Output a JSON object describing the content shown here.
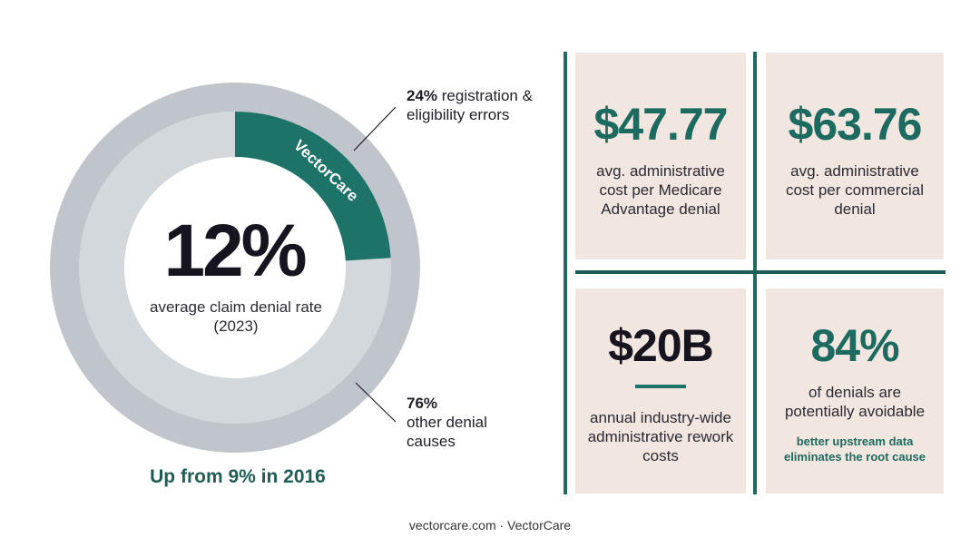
{
  "chart_data": {
    "type": "pie",
    "categories": [
      "registration & eligibility errors",
      "other denial causes"
    ],
    "values": [
      24,
      76
    ],
    "colors": [
      "#1d7368",
      "#d3d8dc"
    ],
    "center_value": "12%",
    "center_caption": "average claim denial rate (2023)",
    "segment_label": "VectorCare",
    "callouts": [
      {
        "pct": "24%",
        "text": "registration & eligibility errors"
      },
      {
        "pct": "76%",
        "text": "other denial causes"
      }
    ],
    "footnote": "Up from 9% in 2016"
  },
  "stats": [
    {
      "value": "$47.77",
      "description": "avg. administrative cost per Medicare Advantage denial",
      "color": "#1c6a60"
    },
    {
      "value": "$63.76",
      "description": "avg. administrative cost per commercial denial",
      "color": "#1c6a60"
    },
    {
      "value": "$20B",
      "description": "annual industry-wide administrative rework costs",
      "color": "#17131f"
    },
    {
      "value": "84%",
      "description": "of denials are potentially avoidable",
      "note": "better upstream data eliminates the root cause",
      "color": "#1c6a60"
    }
  ],
  "footer": "vectorcare.com · VectorCare"
}
